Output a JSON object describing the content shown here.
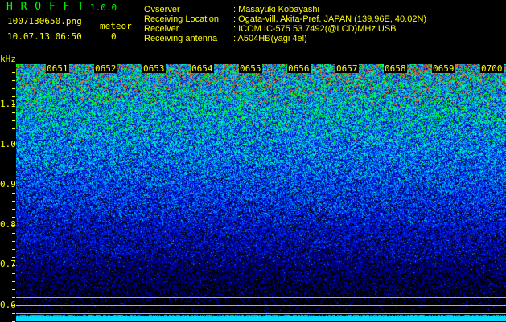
{
  "header": {
    "app_title": "H R O F F T",
    "version": "1.0.0",
    "filename": "1007130650.png",
    "datetime": "10.07.13 06:50",
    "meteor_label": "meteor",
    "meteor_count": "0",
    "info": [
      {
        "label": "Ovserver",
        "value": ": Masayuki Kobayashi"
      },
      {
        "label": "Receiving Location",
        "value": ": Ogata-vill. Akita-Pref. JAPAN (139.96E, 40.02N)"
      },
      {
        "label": "Receiver",
        "value": ": ICOM IC-575 53.7492(@LCD)MHz USB"
      },
      {
        "label": "Receiving antenna",
        "value": ": A504HB(yagi 4el)"
      }
    ]
  },
  "chart_data": {
    "type": "heatmap",
    "ylabel": "kHz",
    "yticks": [
      "1.1",
      "1.0",
      "0.9",
      "0.8",
      "0.7",
      "0.6"
    ],
    "xticks": [
      "0651",
      "0652",
      "0653",
      "0654",
      "0655",
      "0656",
      "0657",
      "0658",
      "0659",
      "0700"
    ],
    "ylim": [
      0.57,
      1.2
    ],
    "colormap": [
      "#000000",
      "#0000a0",
      "#0030ff",
      "#00a0ff",
      "#00ffc0",
      "#00ff00",
      "#ff4000"
    ]
  }
}
